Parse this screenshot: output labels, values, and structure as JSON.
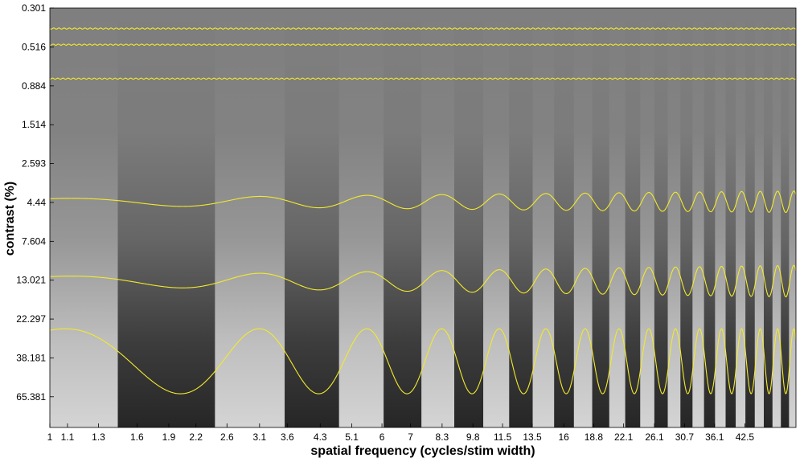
{
  "chart_data": {
    "type": "line",
    "title": "",
    "xlabel": "spatial frequency (cycles/stim width)",
    "ylabel": "contrast (%)",
    "x_scale": "log",
    "y_scale": "log",
    "xlim": [
      1,
      56
    ],
    "ylim": [
      0.301,
      100
    ],
    "y_direction": "reversed",
    "grid": false,
    "legend": "none",
    "x_ticks": [
      "1",
      "1.1",
      "1.3",
      "1.6",
      "1.9",
      "2.2",
      "2.6",
      "3.1",
      "3.6",
      "4.3",
      "5.1",
      "6",
      "7",
      "8.3",
      "9.8",
      "11.5",
      "13.5",
      "16",
      "18.8",
      "22.1",
      "26.1",
      "30.7",
      "36.1",
      "42.5"
    ],
    "y_ticks": [
      "0.301",
      "0.516",
      "0.884",
      "1.514",
      "2.593",
      "4.44",
      "7.604",
      "13.021",
      "22.297",
      "38.181",
      "65.381"
    ],
    "background": "Campbell-Robson contrast sensitivity grating, grayscale, chirp frequency increasing left to right, contrast increasing top to bottom",
    "line_color": "#f2ea2a",
    "series": [
      {
        "baseline_contrast": 0.4,
        "amplitude": 0.05,
        "envelope": "flat"
      },
      {
        "baseline_contrast": 0.5,
        "amplitude": 0.05,
        "envelope": "flat"
      },
      {
        "baseline_contrast": 0.8,
        "amplitude": 0.05,
        "envelope": "flat"
      },
      {
        "baseline_contrast": 4.4,
        "amplitude": 0.15,
        "envelope": "growing"
      },
      {
        "baseline_contrast": 13.2,
        "amplitude": 0.22,
        "envelope": "growing"
      },
      {
        "baseline_contrast": 40.0,
        "amplitude": 0.45,
        "envelope": "constant"
      }
    ]
  }
}
